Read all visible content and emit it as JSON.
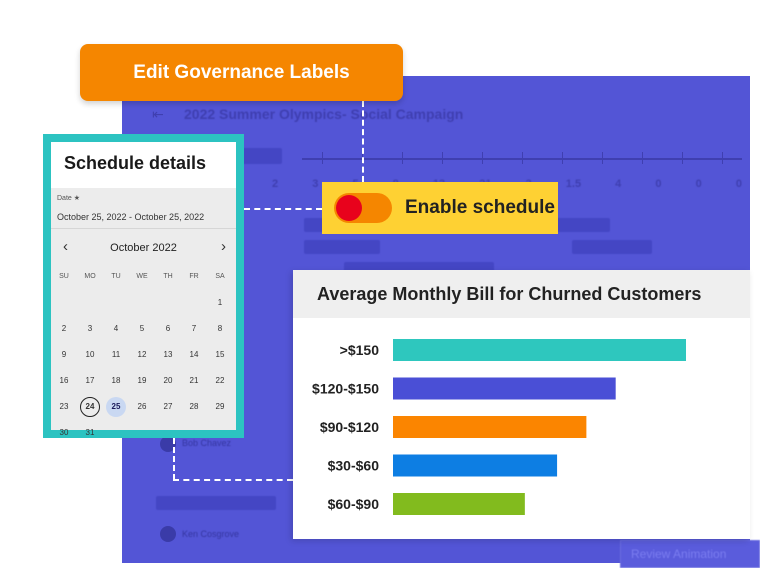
{
  "governance_button": {
    "label": "Edit Governance Labels",
    "color": "#f58600"
  },
  "background_app": {
    "title": "2022 Summer Olympics- Social Campaign",
    "back_icon": "arrow-left-icon",
    "timeline_numbers": [
      "2",
      "3",
      "5",
      "8",
      "13",
      "21",
      "3",
      "1.5",
      "4",
      "0",
      "0",
      "0"
    ],
    "rows": [
      "Bob Chavez",
      "Ken Cosgrove"
    ],
    "action_label": "Review Animation",
    "color": "#5355d6"
  },
  "schedule": {
    "heading": "Schedule details",
    "date_label": "Date",
    "date_range": "October 25, 2022 - October 25, 2022",
    "month": "October 2022",
    "prev_icon": "chevron-left-icon",
    "next_icon": "chevron-right-icon",
    "weekdays": [
      "SU",
      "MO",
      "TU",
      "WE",
      "TH",
      "FR",
      "SA"
    ],
    "weeks": [
      [
        "",
        "",
        "",
        "",
        "",
        "",
        "1"
      ],
      [
        "2",
        "3",
        "4",
        "5",
        "6",
        "7",
        "8"
      ],
      [
        "9",
        "10",
        "11",
        "12",
        "13",
        "14",
        "15"
      ],
      [
        "16",
        "17",
        "18",
        "19",
        "20",
        "21",
        "22"
      ],
      [
        "23",
        "24",
        "25",
        "26",
        "27",
        "28",
        "29"
      ],
      [
        "30",
        "31",
        "",
        "",
        "",
        "",
        ""
      ]
    ],
    "today": "24",
    "selected": "25",
    "border_color": "#2cc3c1"
  },
  "enable_schedule": {
    "label": "Enable schedule",
    "toggle_on": true,
    "chip_color": "#fed133"
  },
  "chart_data": {
    "type": "bar",
    "orientation": "horizontal",
    "title": "Average Monthly Bill for Churned Customers",
    "categories": [
      ">$150",
      "$120-$150",
      "$90-$120",
      "$30-$60",
      "$60-$90"
    ],
    "values": [
      100,
      76,
      66,
      56,
      45
    ],
    "colors": [
      "#2ec7be",
      "#4a4fd6",
      "#fb8500",
      "#0d7ee3",
      "#82bb1e"
    ],
    "xlabel": "",
    "ylabel": "",
    "xlim": [
      0,
      100
    ],
    "grid": false,
    "legend": "none"
  }
}
